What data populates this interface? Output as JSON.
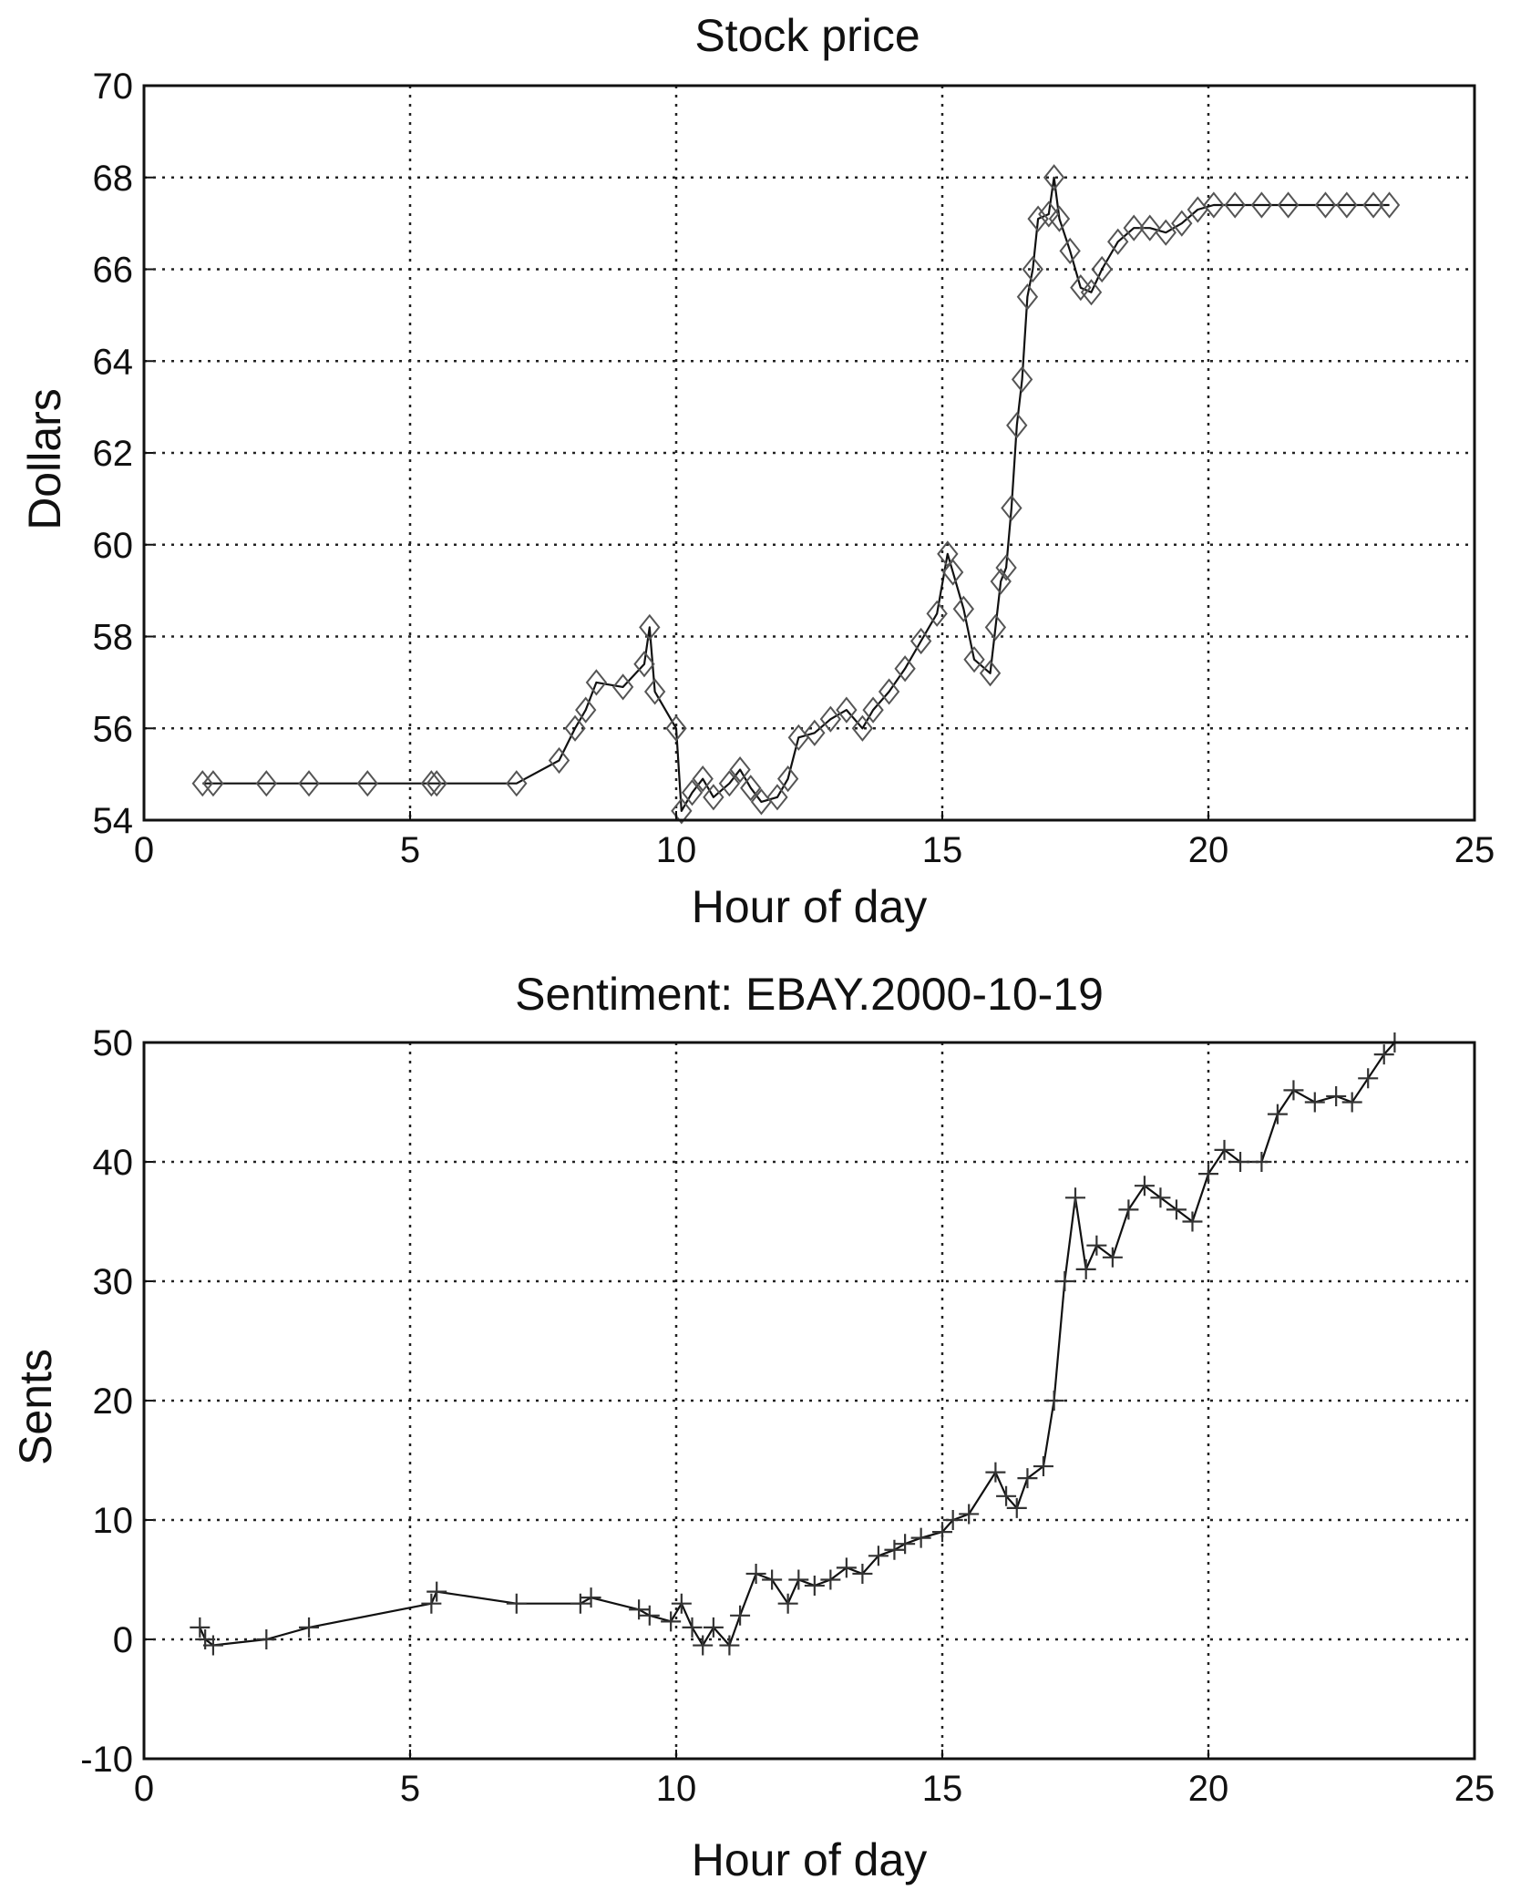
{
  "chart_data": [
    {
      "type": "line",
      "title": "Stock price",
      "xlabel": "Hour of day",
      "ylabel": "Dollars",
      "xlim": [
        0,
        25
      ],
      "ylim": [
        54,
        70
      ],
      "xticks": [
        0,
        5,
        10,
        15,
        20,
        25
      ],
      "yticks": [
        54,
        56,
        58,
        60,
        62,
        64,
        66,
        68,
        70
      ],
      "grid": true,
      "marker": "diamond",
      "colors": {
        "line": "#111111",
        "marker": "#555555",
        "grid": "#222222"
      },
      "series": [
        {
          "x": [
            1.1,
            1.3,
            2.3,
            3.1,
            4.2,
            5.4,
            5.5,
            7.0,
            7.8,
            8.1,
            8.3,
            8.5,
            9.0,
            9.4,
            9.5,
            9.6,
            10.0,
            10.1,
            10.3,
            10.5,
            10.7,
            11.0,
            11.2,
            11.4,
            11.6,
            11.9,
            12.1,
            12.3,
            12.6,
            12.9,
            13.2,
            13.5,
            13.7,
            14.0,
            14.3,
            14.6,
            14.9,
            15.1,
            15.2,
            15.4,
            15.6,
            15.9,
            16.0,
            16.1,
            16.2,
            16.3,
            16.4,
            16.5,
            16.6,
            16.7,
            16.8,
            17.0,
            17.1,
            17.2,
            17.4,
            17.6,
            17.8,
            18.0,
            18.3,
            18.6,
            18.9,
            19.2,
            19.5,
            19.8,
            20.1,
            20.5,
            21.0,
            21.5,
            22.2,
            22.6,
            23.1,
            23.4
          ],
          "y": [
            54.8,
            54.8,
            54.8,
            54.8,
            54.8,
            54.8,
            54.8,
            54.8,
            55.3,
            56.0,
            56.4,
            57.0,
            56.9,
            57.4,
            58.2,
            56.8,
            56.0,
            54.2,
            54.6,
            54.9,
            54.5,
            54.8,
            55.1,
            54.7,
            54.4,
            54.5,
            54.9,
            55.8,
            55.9,
            56.2,
            56.4,
            56.0,
            56.4,
            56.8,
            57.3,
            57.9,
            58.5,
            59.8,
            59.4,
            58.6,
            57.5,
            57.2,
            58.2,
            59.2,
            59.5,
            60.8,
            62.6,
            63.6,
            65.4,
            66.0,
            67.1,
            67.2,
            68.0,
            67.1,
            66.4,
            65.6,
            65.5,
            66.0,
            66.6,
            66.9,
            66.9,
            66.8,
            67.0,
            67.3,
            67.4,
            67.4,
            67.4,
            67.4,
            67.4,
            67.4,
            67.4,
            67.4
          ]
        }
      ]
    },
    {
      "type": "line",
      "title": "Sentiment: EBAY.2000-10-19",
      "xlabel": "Hour of day",
      "ylabel": "Sents",
      "xlim": [
        0,
        25
      ],
      "ylim": [
        -10,
        50
      ],
      "xticks": [
        0,
        5,
        10,
        15,
        20,
        25
      ],
      "yticks": [
        -10,
        0,
        10,
        20,
        30,
        40,
        50
      ],
      "grid": true,
      "marker": "plus",
      "colors": {
        "line": "#111111",
        "marker": "#333333",
        "grid": "#222222"
      },
      "series": [
        {
          "x": [
            1.05,
            1.15,
            1.3,
            2.3,
            3.1,
            5.4,
            5.5,
            7.0,
            8.2,
            8.4,
            9.3,
            9.5,
            9.9,
            10.1,
            10.3,
            10.5,
            10.7,
            11.0,
            11.2,
            11.5,
            11.8,
            12.1,
            12.3,
            12.6,
            12.9,
            13.2,
            13.5,
            13.8,
            14.1,
            14.3,
            14.6,
            15.0,
            15.2,
            15.5,
            16.0,
            16.2,
            16.4,
            16.6,
            16.9,
            17.1,
            17.3,
            17.5,
            17.7,
            17.9,
            18.2,
            18.5,
            18.8,
            19.1,
            19.4,
            19.7,
            20.0,
            20.3,
            20.6,
            21.0,
            21.3,
            21.6,
            22.0,
            22.4,
            22.7,
            23.0,
            23.3,
            23.5
          ],
          "y": [
            1,
            0,
            -0.5,
            0,
            1,
            3,
            4,
            3,
            3,
            3.5,
            2.5,
            2,
            1.5,
            3,
            1,
            -0.5,
            1,
            -0.5,
            2,
            5.5,
            5,
            3,
            5,
            4.5,
            5,
            6,
            5.5,
            7,
            7.5,
            8,
            8.5,
            9,
            10,
            10.5,
            14,
            12,
            11,
            13.5,
            14.5,
            20,
            30,
            37,
            31,
            33,
            32,
            36,
            38,
            37,
            36,
            35,
            39,
            41,
            40,
            40,
            44,
            46,
            45,
            45.5,
            45,
            47,
            49,
            50
          ]
        }
      ]
    }
  ]
}
